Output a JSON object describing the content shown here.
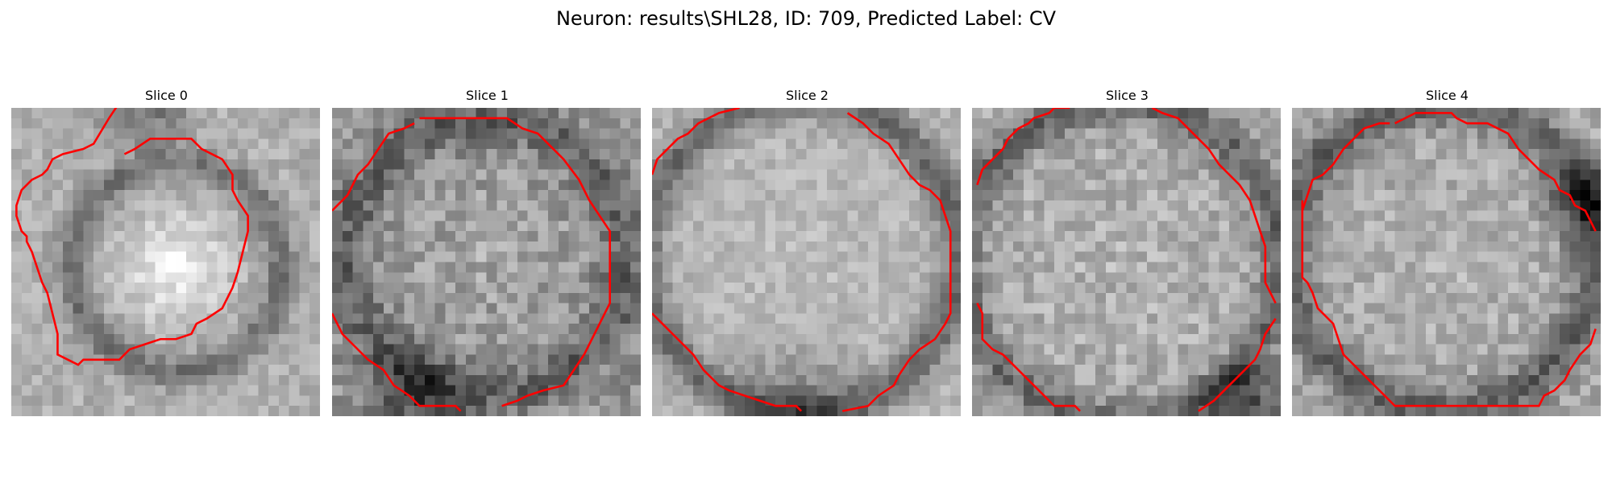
{
  "title": "Neuron: results\\SHL28, ID: 709, Predicted Label: CV",
  "outline_color": "#ff0000",
  "colormap": "gray",
  "grid_size": 30,
  "slices": [
    {
      "label": "Slice 0",
      "base_mean": 176,
      "noise": 22,
      "center": [
        16,
        15.5
      ],
      "blob_radius": 7.5,
      "blob_gain": 70,
      "ring_radius": 10.2,
      "ring_width": 1.6,
      "ring_gain": -62,
      "dark_corner": [
        13,
        -2,
        7,
        -90
      ],
      "outline_segments": [
        [
          [
            10.5,
            -0.5
          ],
          [
            9.5,
            1
          ],
          [
            8,
            3.5
          ],
          [
            7,
            4
          ],
          [
            5,
            4.5
          ],
          [
            4,
            5
          ],
          [
            3.5,
            6
          ],
          [
            3,
            6.5
          ],
          [
            2,
            7
          ],
          [
            1,
            8
          ],
          [
            0.5,
            9.5
          ],
          [
            0.5,
            10.5
          ],
          [
            1,
            12
          ],
          [
            1.5,
            12.5
          ],
          [
            1.5,
            13
          ],
          [
            2,
            14
          ],
          [
            2.5,
            15.5
          ],
          [
            3,
            17
          ],
          [
            3.5,
            18
          ],
          [
            4,
            20
          ],
          [
            4.5,
            22
          ],
          [
            4.5,
            24
          ],
          [
            5.5,
            24.5
          ],
          [
            6.5,
            25
          ],
          [
            7,
            24.5
          ],
          [
            8.5,
            24.5
          ],
          [
            10.5,
            24.5
          ],
          [
            11.5,
            23.5
          ],
          [
            13,
            23
          ],
          [
            14.5,
            22.5
          ],
          [
            16,
            22.5
          ],
          [
            17.5,
            22
          ],
          [
            18,
            21
          ],
          [
            19,
            20.5
          ],
          [
            20.5,
            19.5
          ],
          [
            21.5,
            17.5
          ],
          [
            22,
            16
          ],
          [
            22.5,
            14
          ],
          [
            23,
            12
          ],
          [
            23,
            10.5
          ],
          [
            22,
            9
          ],
          [
            21.5,
            8
          ],
          [
            21.5,
            6.5
          ],
          [
            20.5,
            5
          ],
          [
            19.5,
            4.5
          ],
          [
            18.5,
            4
          ],
          [
            18,
            3.5
          ],
          [
            17.5,
            3
          ],
          [
            16.5,
            3
          ],
          [
            15,
            3
          ],
          [
            13.5,
            3
          ],
          [
            12,
            4
          ],
          [
            11,
            4.5
          ]
        ]
      ]
    },
    {
      "label": "Slice 1",
      "base_mean": 150,
      "noise": 34,
      "center": [
        15,
        14.5
      ],
      "blob_radius": 11,
      "blob_gain": 18,
      "ring_radius": 13.5,
      "ring_width": 2.2,
      "ring_gain": -55,
      "dark_corner": [
        8,
        28,
        7,
        -70
      ],
      "outline_segments": [
        [
          [
            8.5,
            1
          ],
          [
            10.5,
            1
          ],
          [
            13,
            1
          ],
          [
            15,
            1
          ],
          [
            17,
            1
          ],
          [
            18.5,
            2
          ],
          [
            20,
            2.5
          ],
          [
            21,
            3.5
          ],
          [
            22.5,
            5
          ],
          [
            24,
            7
          ],
          [
            24.5,
            8
          ],
          [
            25,
            9
          ],
          [
            26,
            10.5
          ],
          [
            27,
            12
          ],
          [
            27,
            14
          ],
          [
            27,
            16
          ],
          [
            27,
            18
          ],
          [
            27,
            19
          ],
          [
            26.5,
            20
          ],
          [
            25.5,
            22
          ],
          [
            25,
            23
          ],
          [
            24.5,
            24
          ],
          [
            23.5,
            25.5
          ],
          [
            22.5,
            27
          ],
          [
            20.5,
            27.5
          ],
          [
            19,
            28
          ],
          [
            18,
            28.5
          ],
          [
            16.5,
            29
          ]
        ],
        [
          [
            0,
            10
          ],
          [
            0.5,
            9.5
          ],
          [
            1,
            9
          ],
          [
            1.5,
            8.5
          ],
          [
            2.5,
            6.5
          ],
          [
            3.5,
            5.5
          ],
          [
            4.5,
            4
          ],
          [
            5.5,
            2.5
          ],
          [
            7,
            2
          ],
          [
            8,
            1.5
          ]
        ],
        [
          [
            0,
            20
          ],
          [
            1,
            22
          ],
          [
            2,
            23
          ],
          [
            3.5,
            24.5
          ],
          [
            5,
            25.5
          ],
          [
            6,
            27
          ],
          [
            7.5,
            28
          ],
          [
            8.5,
            29
          ],
          [
            10.5,
            29
          ],
          [
            12,
            29
          ],
          [
            12.5,
            29.5
          ]
        ]
      ]
    },
    {
      "label": "Slice 2",
      "base_mean": 180,
      "noise": 20,
      "center": [
        14.5,
        14.5
      ],
      "blob_radius": 13,
      "blob_gain": 10,
      "ring_radius": 15.3,
      "ring_width": 1.8,
      "ring_gain": -75,
      "dark_corner": [
        14,
        30,
        9,
        -60
      ],
      "outline_segments": [
        [
          [
            0,
            6.5
          ],
          [
            0.5,
            5
          ],
          [
            1.5,
            4
          ],
          [
            2.5,
            3
          ],
          [
            3.5,
            2.5
          ],
          [
            4.5,
            1.5
          ],
          [
            5.5,
            1
          ],
          [
            6.5,
            0.5
          ],
          [
            8.5,
            0
          ]
        ],
        [
          [
            19,
            0.5
          ],
          [
            20.5,
            1.5
          ],
          [
            21.5,
            2.5
          ],
          [
            23,
            3.5
          ],
          [
            24,
            5
          ],
          [
            25,
            6.5
          ],
          [
            26,
            7.5
          ],
          [
            27,
            8
          ],
          [
            28,
            9
          ],
          [
            28.5,
            10.5
          ],
          [
            29,
            12
          ],
          [
            29,
            14
          ],
          [
            29,
            16
          ],
          [
            29,
            18
          ],
          [
            29,
            20
          ],
          [
            28.5,
            21
          ],
          [
            27.5,
            22.5
          ],
          [
            26,
            23.5
          ],
          [
            25,
            24.5
          ],
          [
            24,
            26
          ],
          [
            23.5,
            27
          ],
          [
            22,
            28
          ],
          [
            21,
            29
          ],
          [
            18.5,
            29.5
          ]
        ],
        [
          [
            0,
            20
          ],
          [
            1,
            21
          ],
          [
            2,
            22
          ],
          [
            3,
            23
          ],
          [
            4,
            24
          ],
          [
            5,
            25.5
          ],
          [
            6.5,
            27
          ],
          [
            7.5,
            27.5
          ],
          [
            9,
            28
          ],
          [
            10.5,
            28.5
          ],
          [
            12,
            29
          ],
          [
            14,
            29
          ],
          [
            14.5,
            29.5
          ]
        ]
      ]
    },
    {
      "label": "Slice 3",
      "base_mean": 172,
      "noise": 30,
      "center": [
        14.5,
        15
      ],
      "blob_radius": 12,
      "blob_gain": 8,
      "ring_radius": 15.5,
      "ring_width": 2,
      "ring_gain": -70,
      "dark_corner": [
        27,
        29,
        6,
        -100
      ],
      "outline_segments": [
        [
          [
            0.5,
            7.5
          ],
          [
            1,
            6
          ],
          [
            2,
            5
          ],
          [
            3,
            4
          ],
          [
            3.5,
            3
          ],
          [
            4.5,
            2
          ],
          [
            5.5,
            1.5
          ],
          [
            6,
            1
          ],
          [
            7.5,
            0.5
          ],
          [
            8,
            0
          ],
          [
            9.5,
            0
          ]
        ],
        [
          [
            17.5,
            0
          ],
          [
            18.5,
            0.5
          ],
          [
            20,
            1
          ],
          [
            21,
            2
          ],
          [
            22,
            3
          ],
          [
            23,
            4
          ],
          [
            24,
            5.5
          ],
          [
            26,
            7.5
          ],
          [
            27,
            9
          ],
          [
            27.5,
            10.5
          ],
          [
            28,
            12
          ],
          [
            28.5,
            13.5
          ],
          [
            28.5,
            16
          ],
          [
            28.5,
            17
          ],
          [
            29,
            18
          ],
          [
            29.5,
            19
          ]
        ],
        [
          [
            0.5,
            19
          ],
          [
            1,
            20
          ],
          [
            1,
            21
          ],
          [
            1,
            22.5
          ],
          [
            2,
            23.5
          ],
          [
            3,
            24
          ],
          [
            4,
            25
          ],
          [
            5,
            26
          ],
          [
            6,
            27
          ],
          [
            7,
            28
          ],
          [
            8,
            29
          ],
          [
            10,
            29
          ],
          [
            10.5,
            29.5
          ]
        ],
        [
          [
            22,
            29.5
          ],
          [
            23.5,
            28.5
          ],
          [
            25,
            27
          ],
          [
            26.5,
            25.5
          ],
          [
            27.5,
            24.5
          ],
          [
            28,
            23.5
          ],
          [
            28.5,
            22
          ],
          [
            29.5,
            20.5
          ]
        ]
      ]
    },
    {
      "label": "Slice 4",
      "base_mean": 170,
      "noise": 28,
      "center": [
        14.5,
        14.5
      ],
      "blob_radius": 12,
      "blob_gain": 10,
      "ring_radius": 15,
      "ring_width": 2.2,
      "ring_gain": -75,
      "dark_corner": [
        29,
        9,
        6,
        -90
      ],
      "outline_segments": [
        [
          [
            10,
            1.5
          ],
          [
            11,
            1
          ],
          [
            12,
            0.5
          ],
          [
            13,
            0.5
          ],
          [
            15.5,
            0.5
          ],
          [
            16,
            1
          ],
          [
            17,
            1.5
          ],
          [
            19,
            1.5
          ],
          [
            20,
            2
          ],
          [
            21,
            2.5
          ],
          [
            22,
            4
          ],
          [
            23,
            5
          ],
          [
            24,
            6
          ],
          [
            25.5,
            7
          ],
          [
            26,
            8
          ],
          [
            27,
            8.5
          ],
          [
            27.5,
            9.5
          ],
          [
            28.5,
            10
          ],
          [
            29,
            11
          ],
          [
            29.5,
            12
          ]
        ],
        [
          [
            1,
            10
          ],
          [
            1.5,
            8.5
          ],
          [
            2,
            7
          ],
          [
            3,
            6.5
          ],
          [
            4,
            5.5
          ],
          [
            5,
            4
          ],
          [
            6,
            3
          ],
          [
            7,
            2
          ],
          [
            8.5,
            1.5
          ],
          [
            9.5,
            1.5
          ]
        ],
        [
          [
            1,
            9
          ],
          [
            1,
            11
          ],
          [
            1,
            14
          ],
          [
            1,
            16.5
          ],
          [
            1.5,
            17
          ],
          [
            2,
            18
          ],
          [
            2.5,
            19.5
          ],
          [
            3,
            20
          ],
          [
            4,
            21
          ],
          [
            4.5,
            22.5
          ],
          [
            5,
            24
          ],
          [
            6,
            25
          ],
          [
            7,
            26
          ],
          [
            8,
            27
          ],
          [
            9,
            28
          ],
          [
            10,
            29
          ],
          [
            24,
            29
          ],
          [
            24.5,
            28
          ],
          [
            25.5,
            27.5
          ],
          [
            26.5,
            26.5
          ],
          [
            27,
            25.5
          ],
          [
            28,
            24
          ],
          [
            29,
            23
          ],
          [
            29.5,
            21.5
          ]
        ]
      ]
    }
  ]
}
